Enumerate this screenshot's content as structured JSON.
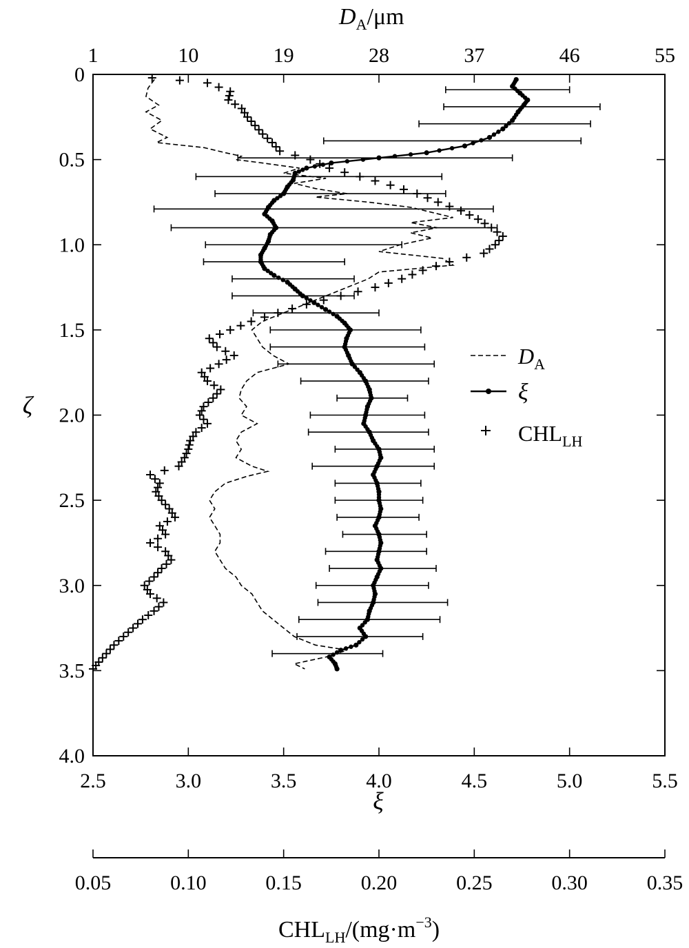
{
  "chart_data": {
    "type": "line",
    "title": "",
    "orientation": "profile",
    "y_axis": {
      "label": "ζ",
      "range": [
        0,
        4.0
      ],
      "inverted": true,
      "ticks": [
        "0",
        "0.5",
        "1.0",
        "1.5",
        "2.0",
        "2.5",
        "3.0",
        "3.5",
        "4.0"
      ]
    },
    "x_axis_bottom": {
      "label": "ξ",
      "range": [
        2.5,
        5.5
      ],
      "ticks": [
        "2.5",
        "3.0",
        "3.5",
        "4.0",
        "4.5",
        "5.0",
        "5.5"
      ]
    },
    "x_axis_top": {
      "label_main": "D",
      "label_sub": "A",
      "label_unit": "/μm",
      "range": [
        1,
        55
      ],
      "ticks": [
        "1",
        "10",
        "19",
        "28",
        "37",
        "46",
        "55"
      ]
    },
    "x_axis_chl": {
      "label_main": "CHL",
      "label_sub": "LH",
      "label_unit": "/(mg·m",
      "label_sup": "−3",
      "label_close": ")",
      "range": [
        0.05,
        0.35
      ],
      "ticks": [
        "0.05",
        "0.10",
        "0.15",
        "0.20",
        "0.25",
        "0.30",
        "0.35"
      ]
    },
    "legend": {
      "placement": "right",
      "items": [
        {
          "symbol": "dashed",
          "main": "D",
          "sub": "A"
        },
        {
          "symbol": "line-dot",
          "main": "ξ",
          "sub": ""
        },
        {
          "symbol": "plus",
          "main": "CHL",
          "sub": "LH"
        }
      ]
    },
    "series": [
      {
        "name": "D_A",
        "axis": "top",
        "points": [
          [
            0.03,
            6.8
          ],
          [
            0.08,
            6.2
          ],
          [
            0.13,
            6.0
          ],
          [
            0.18,
            7.2
          ],
          [
            0.22,
            6.0
          ],
          [
            0.27,
            7.5
          ],
          [
            0.32,
            6.4
          ],
          [
            0.37,
            8.0
          ],
          [
            0.4,
            7.0
          ],
          [
            0.43,
            11.5
          ],
          [
            0.46,
            13.5
          ],
          [
            0.48,
            15.0
          ],
          [
            0.5,
            14.5
          ],
          [
            0.52,
            17.0
          ],
          [
            0.55,
            20.5
          ],
          [
            0.58,
            19.0
          ],
          [
            0.61,
            23.0
          ],
          [
            0.64,
            20.0
          ],
          [
            0.67,
            22.0
          ],
          [
            0.7,
            25.0
          ],
          [
            0.72,
            22.0
          ],
          [
            0.75,
            27.0
          ],
          [
            0.78,
            31.0
          ],
          [
            0.81,
            33.0
          ],
          [
            0.84,
            35.0
          ],
          [
            0.87,
            31.0
          ],
          [
            0.9,
            33.5
          ],
          [
            0.93,
            31.0
          ],
          [
            0.96,
            33.0
          ],
          [
            1.0,
            30.0
          ],
          [
            1.04,
            28.0
          ],
          [
            1.08,
            34.0
          ],
          [
            1.12,
            35.0
          ],
          [
            1.16,
            28.0
          ],
          [
            1.2,
            27.0
          ],
          [
            1.25,
            25.0
          ],
          [
            1.3,
            23.0
          ],
          [
            1.35,
            21.0
          ],
          [
            1.4,
            19.0
          ],
          [
            1.45,
            17.0
          ],
          [
            1.5,
            16.0
          ],
          [
            1.55,
            16.5
          ],
          [
            1.6,
            17.0
          ],
          [
            1.65,
            18.0
          ],
          [
            1.7,
            19.5
          ],
          [
            1.75,
            16.5
          ],
          [
            1.8,
            15.5
          ],
          [
            1.85,
            15.0
          ],
          [
            1.9,
            14.8
          ],
          [
            1.95,
            15.5
          ],
          [
            2.0,
            15.0
          ],
          [
            2.05,
            16.5
          ],
          [
            2.1,
            15.0
          ],
          [
            2.15,
            14.5
          ],
          [
            2.2,
            15.0
          ],
          [
            2.25,
            14.5
          ],
          [
            2.3,
            16.0
          ],
          [
            2.33,
            17.5
          ],
          [
            2.36,
            15.5
          ],
          [
            2.4,
            13.5
          ],
          [
            2.45,
            12.5
          ],
          [
            2.5,
            12.0
          ],
          [
            2.55,
            12.5
          ],
          [
            2.6,
            12.0
          ],
          [
            2.65,
            12.5
          ],
          [
            2.7,
            13.0
          ],
          [
            2.75,
            13.0
          ],
          [
            2.8,
            12.5
          ],
          [
            2.85,
            13.0
          ],
          [
            2.9,
            13.5
          ],
          [
            2.95,
            14.5
          ],
          [
            3.0,
            15.0
          ],
          [
            3.05,
            16.0
          ],
          [
            3.1,
            16.5
          ],
          [
            3.15,
            17.0
          ],
          [
            3.2,
            18.0
          ],
          [
            3.25,
            19.0
          ],
          [
            3.3,
            20.0
          ],
          [
            3.35,
            22.0
          ],
          [
            3.38,
            25.0
          ],
          [
            3.42,
            23.0
          ],
          [
            3.46,
            20.0
          ],
          [
            3.49,
            21.0
          ]
        ]
      },
      {
        "name": "ξ",
        "axis": "bottom",
        "points": [
          [
            0.03,
            4.72
          ],
          [
            0.07,
            4.7
          ],
          [
            0.11,
            4.74
          ],
          [
            0.15,
            4.78
          ],
          [
            0.18,
            4.76
          ],
          [
            0.22,
            4.73
          ],
          [
            0.27,
            4.7
          ],
          [
            0.32,
            4.65
          ],
          [
            0.37,
            4.58
          ],
          [
            0.42,
            4.45
          ],
          [
            0.46,
            4.25
          ],
          [
            0.49,
            4.0
          ],
          [
            0.52,
            3.75
          ],
          [
            0.55,
            3.62
          ],
          [
            0.58,
            3.56
          ],
          [
            0.62,
            3.55
          ],
          [
            0.66,
            3.52
          ],
          [
            0.7,
            3.5
          ],
          [
            0.74,
            3.45
          ],
          [
            0.78,
            3.42
          ],
          [
            0.82,
            3.4
          ],
          [
            0.86,
            3.44
          ],
          [
            0.9,
            3.46
          ],
          [
            0.94,
            3.43
          ],
          [
            0.98,
            3.42
          ],
          [
            1.02,
            3.4
          ],
          [
            1.06,
            3.38
          ],
          [
            1.1,
            3.38
          ],
          [
            1.14,
            3.4
          ],
          [
            1.18,
            3.45
          ],
          [
            1.22,
            3.52
          ],
          [
            1.26,
            3.56
          ],
          [
            1.3,
            3.6
          ],
          [
            1.34,
            3.66
          ],
          [
            1.38,
            3.72
          ],
          [
            1.42,
            3.78
          ],
          [
            1.46,
            3.82
          ],
          [
            1.5,
            3.85
          ],
          [
            1.55,
            3.83
          ],
          [
            1.6,
            3.82
          ],
          [
            1.65,
            3.84
          ],
          [
            1.7,
            3.86
          ],
          [
            1.75,
            3.9
          ],
          [
            1.8,
            3.93
          ],
          [
            1.85,
            3.95
          ],
          [
            1.9,
            3.96
          ],
          [
            1.95,
            3.94
          ],
          [
            2.0,
            3.93
          ],
          [
            2.05,
            3.92
          ],
          [
            2.1,
            3.95
          ],
          [
            2.15,
            3.97
          ],
          [
            2.2,
            4.0
          ],
          [
            2.25,
            4.01
          ],
          [
            2.3,
            3.99
          ],
          [
            2.35,
            3.97
          ],
          [
            2.4,
            3.99
          ],
          [
            2.45,
            4.0
          ],
          [
            2.5,
            4.0
          ],
          [
            2.55,
            4.01
          ],
          [
            2.6,
            4.0
          ],
          [
            2.65,
            3.98
          ],
          [
            2.7,
            4.0
          ],
          [
            2.75,
            4.01
          ],
          [
            2.8,
            4.0
          ],
          [
            2.85,
            3.99
          ],
          [
            2.9,
            4.01
          ],
          [
            2.95,
            3.99
          ],
          [
            3.0,
            3.97
          ],
          [
            3.05,
            3.98
          ],
          [
            3.1,
            3.97
          ],
          [
            3.15,
            3.95
          ],
          [
            3.2,
            3.94
          ],
          [
            3.25,
            3.9
          ],
          [
            3.3,
            3.93
          ],
          [
            3.35,
            3.88
          ],
          [
            3.38,
            3.8
          ],
          [
            3.42,
            3.74
          ],
          [
            3.46,
            3.77
          ],
          [
            3.49,
            3.78
          ]
        ],
        "error_bars": [
          [
            0.09,
            4.35,
            5.0
          ],
          [
            0.19,
            4.34,
            5.16
          ],
          [
            0.29,
            4.21,
            5.11
          ],
          [
            0.39,
            3.71,
            5.06
          ],
          [
            0.49,
            3.26,
            4.7
          ],
          [
            0.6,
            3.04,
            4.33
          ],
          [
            0.7,
            3.14,
            4.35
          ],
          [
            0.79,
            2.82,
            4.6
          ],
          [
            0.9,
            2.91,
            4.62
          ],
          [
            1.0,
            3.09,
            4.12
          ],
          [
            1.1,
            3.08,
            3.82
          ],
          [
            1.2,
            3.23,
            3.87
          ],
          [
            1.3,
            3.23,
            3.87
          ],
          [
            1.4,
            3.34,
            4.0
          ],
          [
            1.5,
            3.43,
            4.22
          ],
          [
            1.6,
            3.43,
            4.24
          ],
          [
            1.7,
            3.47,
            4.29
          ],
          [
            1.8,
            3.59,
            4.26
          ],
          [
            1.9,
            3.78,
            4.15
          ],
          [
            2.0,
            3.64,
            4.24
          ],
          [
            2.1,
            3.63,
            4.26
          ],
          [
            2.2,
            3.77,
            4.29
          ],
          [
            2.3,
            3.65,
            4.29
          ],
          [
            2.4,
            3.77,
            4.22
          ],
          [
            2.5,
            3.77,
            4.23
          ],
          [
            2.6,
            3.78,
            4.21
          ],
          [
            2.7,
            3.81,
            4.25
          ],
          [
            2.8,
            3.72,
            4.25
          ],
          [
            2.9,
            3.74,
            4.3
          ],
          [
            3.0,
            3.67,
            4.26
          ],
          [
            3.1,
            3.68,
            4.36
          ],
          [
            3.2,
            3.58,
            4.32
          ],
          [
            3.3,
            3.57,
            4.23
          ],
          [
            3.4,
            3.44,
            4.02
          ]
        ]
      },
      {
        "name": "CHL_LH",
        "axis": "chl",
        "points": [
          [
            0.02,
            0.081
          ],
          [
            0.05,
            0.11
          ],
          [
            0.1,
            0.122
          ],
          [
            0.15,
            0.121
          ],
          [
            0.2,
            0.128
          ],
          [
            0.25,
            0.131
          ],
          [
            0.3,
            0.135
          ],
          [
            0.35,
            0.139
          ],
          [
            0.4,
            0.144
          ],
          [
            0.45,
            0.148
          ],
          [
            0.5,
            0.164
          ],
          [
            0.55,
            0.174
          ],
          [
            0.6,
            0.19
          ],
          [
            0.65,
            0.206
          ],
          [
            0.7,
            0.22
          ],
          [
            0.75,
            0.231
          ],
          [
            0.8,
            0.243
          ],
          [
            0.85,
            0.252
          ],
          [
            0.9,
            0.259
          ],
          [
            0.95,
            0.265
          ],
          [
            1.0,
            0.261
          ],
          [
            1.05,
            0.255
          ],
          [
            1.1,
            0.237
          ],
          [
            1.15,
            0.223
          ],
          [
            1.2,
            0.212
          ],
          [
            1.25,
            0.198
          ],
          [
            1.3,
            0.18
          ],
          [
            1.35,
            0.162
          ],
          [
            1.4,
            0.147
          ],
          [
            1.45,
            0.133
          ],
          [
            1.5,
            0.122
          ],
          [
            1.55,
            0.111
          ],
          [
            1.6,
            0.115
          ],
          [
            1.65,
            0.124
          ],
          [
            1.7,
            0.116
          ],
          [
            1.75,
            0.107
          ],
          [
            1.8,
            0.11
          ],
          [
            1.85,
            0.117
          ],
          [
            1.9,
            0.113
          ],
          [
            1.95,
            0.108
          ],
          [
            2.0,
            0.106
          ],
          [
            2.05,
            0.11
          ],
          [
            2.1,
            0.104
          ],
          [
            2.15,
            0.101
          ],
          [
            2.2,
            0.1
          ],
          [
            2.25,
            0.098
          ],
          [
            2.3,
            0.095
          ],
          [
            2.35,
            0.08
          ],
          [
            2.4,
            0.085
          ],
          [
            2.45,
            0.083
          ],
          [
            2.5,
            0.086
          ],
          [
            2.55,
            0.09
          ],
          [
            2.6,
            0.093
          ],
          [
            2.65,
            0.085
          ],
          [
            2.7,
            0.088
          ],
          [
            2.75,
            0.08
          ],
          [
            2.8,
            0.088
          ],
          [
            2.85,
            0.091
          ],
          [
            2.9,
            0.086
          ],
          [
            2.95,
            0.082
          ],
          [
            3.0,
            0.077
          ],
          [
            3.05,
            0.08
          ],
          [
            3.1,
            0.087
          ],
          [
            3.15,
            0.082
          ],
          [
            3.2,
            0.076
          ],
          [
            3.25,
            0.071
          ],
          [
            3.3,
            0.066
          ],
          [
            3.35,
            0.061
          ],
          [
            3.4,
            0.057
          ],
          [
            3.45,
            0.053
          ],
          [
            3.49,
            0.05
          ]
        ]
      }
    ]
  }
}
